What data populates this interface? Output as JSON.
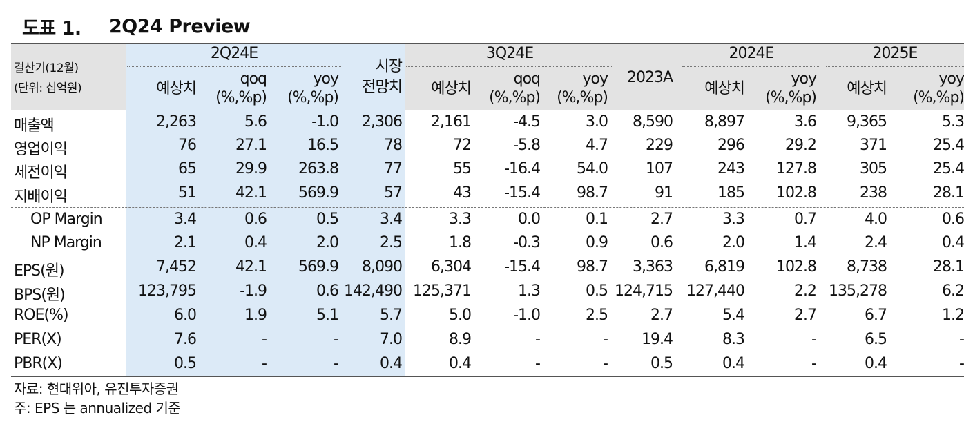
{
  "title": {
    "label": "도표 1.",
    "text": "2Q24 Preview"
  },
  "header": {
    "left_label_1": "결산기(12월)",
    "left_label_2": "(단위: 십억원)",
    "groups": [
      "2Q24E",
      "3Q24E",
      "2024E",
      "2025E"
    ],
    "market_line1": "시장",
    "market_line2": "전망치",
    "col_2023a": "2023A",
    "est": "예상치",
    "qoq_1": "qoq",
    "yoy_1": "yoy",
    "pct_2": "(%,%p)"
  },
  "rows": [
    {
      "label": "매출액",
      "values": [
        "2,263",
        "5.6",
        "-1.0",
        "2,306",
        "2,161",
        "-4.5",
        "3.0",
        "8,590",
        "8,897",
        "3.6",
        "9,365",
        "5.3"
      ]
    },
    {
      "label": "영업이익",
      "values": [
        "76",
        "27.1",
        "16.5",
        "78",
        "72",
        "-5.8",
        "4.7",
        "229",
        "296",
        "29.2",
        "371",
        "25.4"
      ]
    },
    {
      "label": "세전이익",
      "values": [
        "65",
        "29.9",
        "263.8",
        "77",
        "55",
        "-16.4",
        "54.0",
        "107",
        "243",
        "127.8",
        "305",
        "25.4"
      ]
    },
    {
      "label": "지배이익",
      "values": [
        "51",
        "42.1",
        "569.9",
        "57",
        "43",
        "-15.4",
        "98.7",
        "91",
        "185",
        "102.8",
        "238",
        "28.1"
      ]
    },
    {
      "label": "OP Margin",
      "values": [
        "3.4",
        "0.6",
        "0.5",
        "3.4",
        "3.3",
        "0.0",
        "0.1",
        "2.7",
        "3.3",
        "0.7",
        "4.0",
        "0.6"
      ]
    },
    {
      "label": "NP Margin",
      "values": [
        "2.1",
        "0.4",
        "2.0",
        "2.5",
        "1.8",
        "-0.3",
        "0.9",
        "0.6",
        "2.0",
        "1.4",
        "2.4",
        "0.4"
      ]
    },
    {
      "label": "EPS(원)",
      "values": [
        "7,452",
        "42.1",
        "569.9",
        "8,090",
        "6,304",
        "-15.4",
        "98.7",
        "3,363",
        "6,819",
        "102.8",
        "8,738",
        "28.1"
      ]
    },
    {
      "label": "BPS(원)",
      "values": [
        "123,795",
        "-1.9",
        "0.6",
        "142,490",
        "125,371",
        "1.3",
        "0.5",
        "124,715",
        "127,440",
        "2.2",
        "135,278",
        "6.2"
      ]
    },
    {
      "label": "ROE(%)",
      "values": [
        "6.0",
        "1.9",
        "5.1",
        "5.7",
        "5.0",
        "-1.0",
        "2.5",
        "2.7",
        "5.4",
        "2.7",
        "6.7",
        "1.2"
      ]
    },
    {
      "label": "PER(X)",
      "values": [
        "7.6",
        "-",
        "-",
        "7.0",
        "8.9",
        "-",
        "-",
        "19.4",
        "8.3",
        "-",
        "6.5",
        "-"
      ]
    },
    {
      "label": "PBR(X)",
      "values": [
        "0.5",
        "-",
        "-",
        "0.4",
        "0.4",
        "-",
        "-",
        "0.5",
        "0.4",
        "-",
        "0.4",
        "-"
      ]
    }
  ],
  "footnotes": {
    "source": "자료: 현대위아, 유진투자증권",
    "note": "주: EPS 는 annualized 기준"
  }
}
